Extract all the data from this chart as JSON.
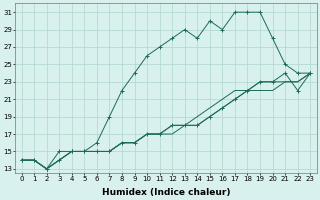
{
  "xlabel": "Humidex (Indice chaleur)",
  "xlim": [
    -0.5,
    23.5
  ],
  "ylim": [
    12.5,
    32
  ],
  "background_color": "#d8f0ee",
  "grid_color": "#b0d4cc",
  "line_color": "#1a6b5a",
  "lines": [
    {
      "x": [
        0,
        1,
        2,
        3,
        4,
        5,
        6,
        7,
        8,
        9,
        10,
        11,
        12,
        13,
        14,
        15,
        16,
        17,
        18,
        19,
        20,
        21,
        22,
        23
      ],
      "y": [
        14,
        14,
        13,
        15,
        15,
        15,
        16,
        19,
        22,
        24,
        26,
        27,
        28,
        29,
        28,
        30,
        29,
        31,
        31,
        31,
        28,
        25,
        24,
        24
      ],
      "marker": "+"
    },
    {
      "x": [
        0,
        1,
        2,
        3,
        4,
        5,
        6,
        7,
        8,
        9,
        10,
        11,
        12,
        13,
        14,
        15,
        16,
        17,
        18,
        19,
        20,
        21,
        22,
        23
      ],
      "y": [
        14,
        14,
        13,
        14,
        15,
        15,
        15,
        15,
        16,
        16,
        17,
        17,
        18,
        18,
        18,
        19,
        20,
        21,
        22,
        23,
        23,
        24,
        22,
        24
      ],
      "marker": "+"
    },
    {
      "x": [
        0,
        1,
        2,
        3,
        4,
        5,
        6,
        7,
        8,
        9,
        10,
        11,
        12,
        13,
        14,
        15,
        16,
        17,
        18,
        19,
        20,
        21,
        22,
        23
      ],
      "y": [
        14,
        14,
        13,
        14,
        15,
        15,
        15,
        15,
        16,
        16,
        17,
        17,
        18,
        18,
        19,
        20,
        21,
        22,
        22,
        23,
        23,
        23,
        23,
        24
      ],
      "marker": null
    },
    {
      "x": [
        0,
        1,
        2,
        3,
        4,
        5,
        6,
        7,
        8,
        9,
        10,
        11,
        12,
        13,
        14,
        15,
        16,
        17,
        18,
        19,
        20,
        21,
        22,
        23
      ],
      "y": [
        14,
        14,
        13,
        14,
        15,
        15,
        15,
        15,
        16,
        16,
        17,
        17,
        17,
        18,
        18,
        19,
        20,
        21,
        22,
        22,
        22,
        23,
        23,
        24
      ],
      "marker": null
    }
  ],
  "xticks": [
    0,
    1,
    2,
    3,
    4,
    5,
    6,
    7,
    8,
    9,
    10,
    11,
    12,
    13,
    14,
    15,
    16,
    17,
    18,
    19,
    20,
    21,
    22,
    23
  ],
  "yticks": [
    13,
    15,
    17,
    19,
    21,
    23,
    25,
    27,
    29,
    31
  ],
  "tick_fontsize": 5.0,
  "axis_fontsize": 6.5
}
